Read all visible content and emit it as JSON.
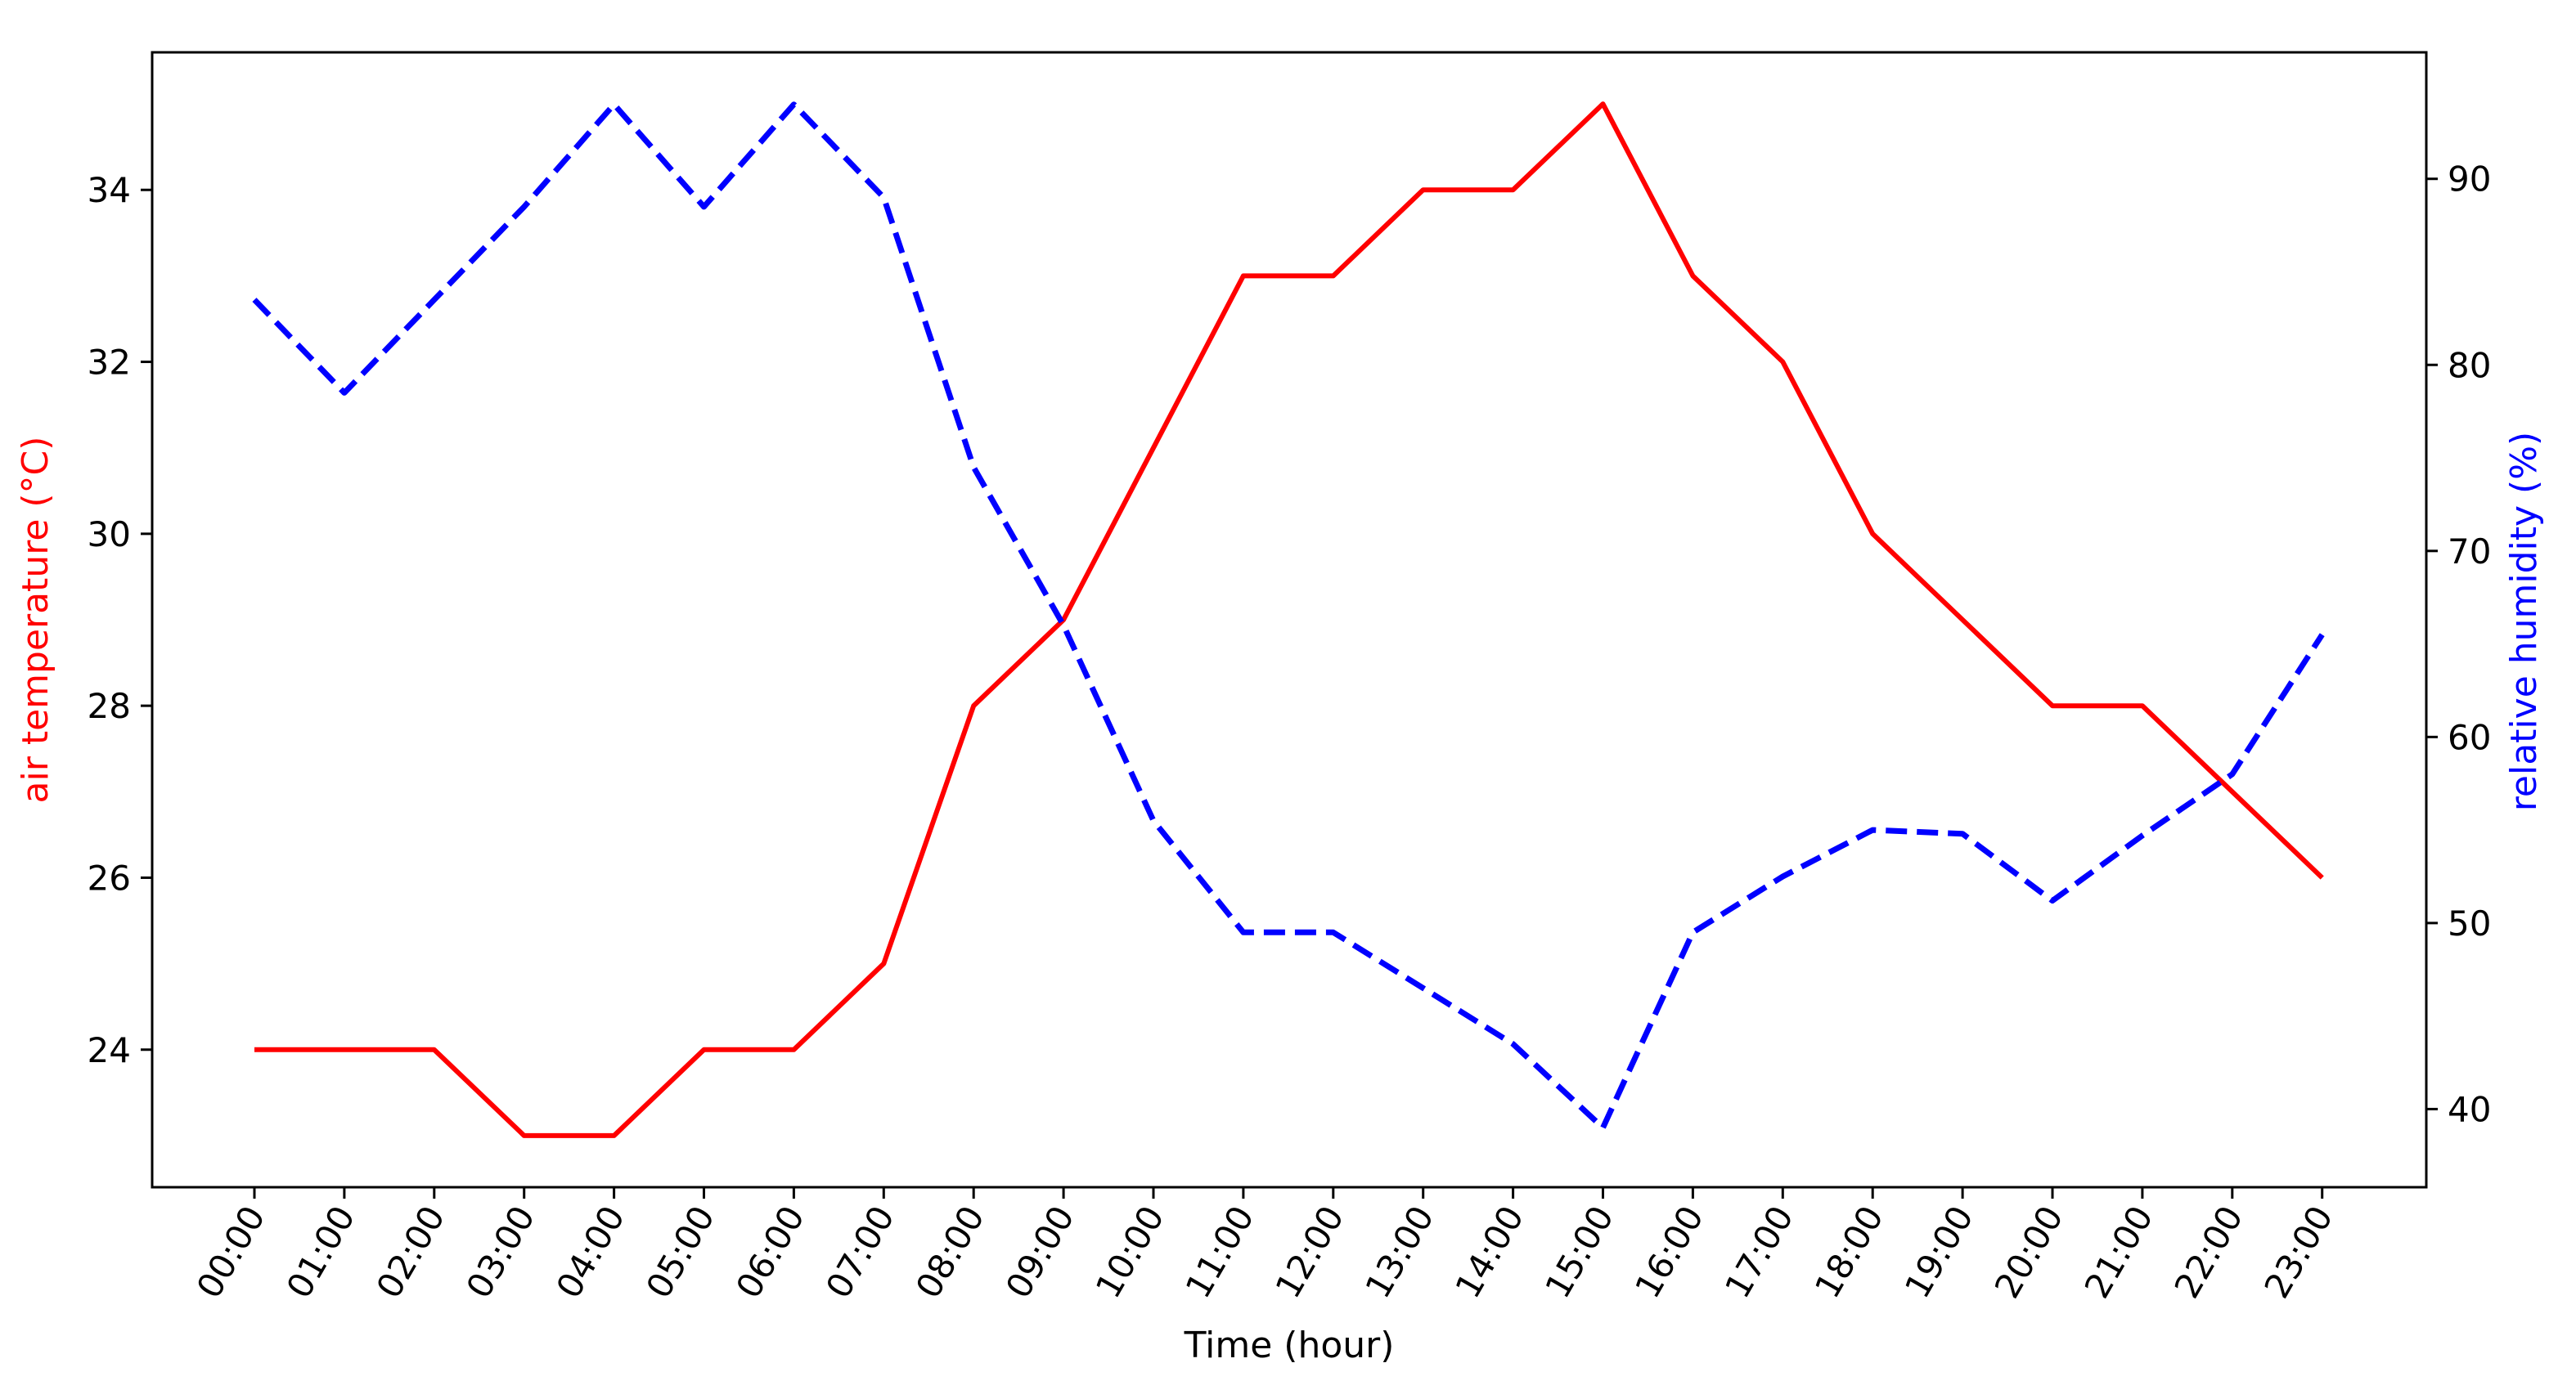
{
  "chart_data": {
    "type": "line",
    "title": "",
    "xlabel": "Time (hour)",
    "ylabel": "air temperature (°C)",
    "y2label": "relative humidity (%)",
    "categories": [
      "00:00",
      "01:00",
      "02:00",
      "03:00",
      "04:00",
      "05:00",
      "06:00",
      "07:00",
      "08:00",
      "09:00",
      "10:00",
      "11:00",
      "12:00",
      "13:00",
      "14:00",
      "15:00",
      "16:00",
      "17:00",
      "18:00",
      "19:00",
      "20:00",
      "21:00",
      "22:00",
      "23:00"
    ],
    "series": [
      {
        "axis": "left",
        "color": "#ff0000",
        "style": "solid",
        "values": [
          24,
          24,
          24,
          23,
          23,
          24,
          24,
          25,
          28,
          29,
          31,
          33,
          33,
          34,
          34,
          35,
          33,
          32,
          30,
          29,
          28,
          28,
          27,
          26
        ]
      },
      {
        "axis": "right",
        "color": "#0000ff",
        "style": "dashed",
        "values": [
          83.5,
          78.5,
          83.5,
          88.5,
          94,
          88.5,
          94,
          89,
          74.5,
          66,
          55.5,
          49.5,
          49.5,
          46.5,
          43.5,
          39,
          49.5,
          52.5,
          55,
          54.8,
          51.2,
          54.7,
          58,
          65.5
        ]
      }
    ],
    "ylim": [
      22.4,
      35.6
    ],
    "y2lim": [
      35.8,
      96.8
    ],
    "yticks": [
      24,
      26,
      28,
      30,
      32,
      34
    ],
    "y2ticks": [
      40,
      50,
      60,
      70,
      80,
      90
    ],
    "grid": false,
    "legend": "none",
    "ylabel_color": "#ff0000",
    "y2label_color": "#0000ff"
  }
}
